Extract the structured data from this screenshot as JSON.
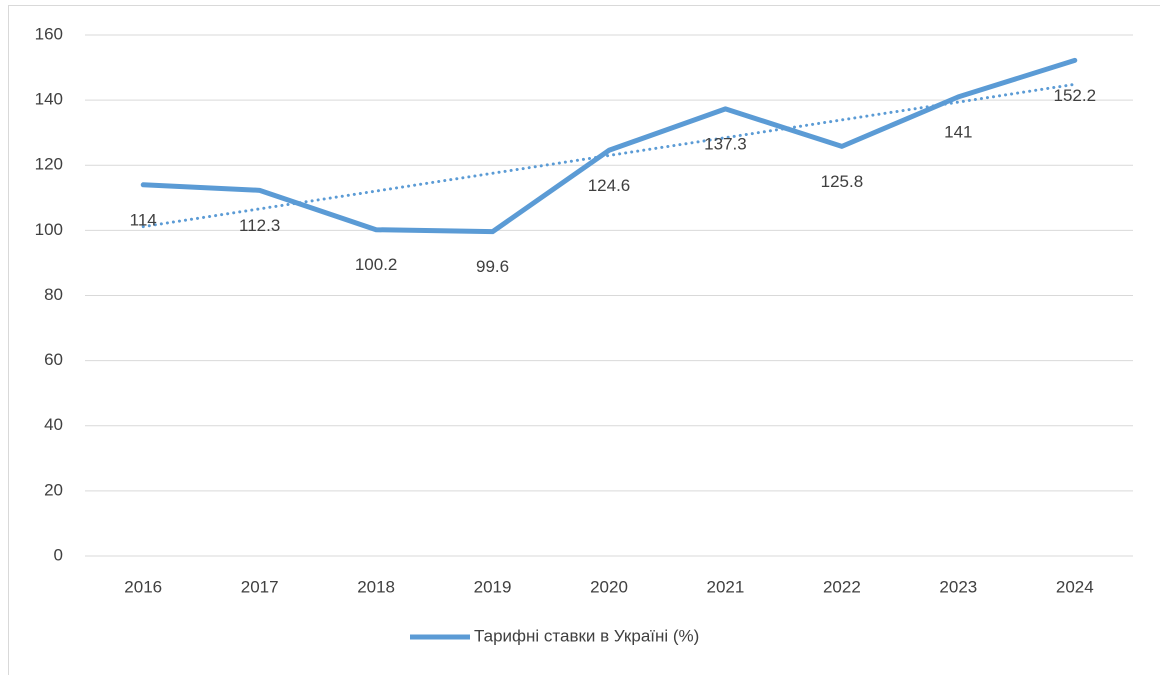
{
  "chart_data": {
    "type": "line",
    "categories": [
      "2016",
      "2017",
      "2018",
      "2019",
      "2020",
      "2021",
      "2022",
      "2023",
      "2024"
    ],
    "series": [
      {
        "name": "Тарифні ставки в Україні (%)",
        "color": "#5b9bd5",
        "values": [
          114,
          112.3,
          100.2,
          99.6,
          124.6,
          137.3,
          125.8,
          141,
          152.2
        ]
      }
    ],
    "ylim": [
      0,
      160
    ],
    "yticks": [
      0,
      20,
      40,
      60,
      80,
      100,
      120,
      140,
      160
    ],
    "grid": true,
    "data_labels": true,
    "trendline": "linear",
    "legend": "bottom"
  }
}
